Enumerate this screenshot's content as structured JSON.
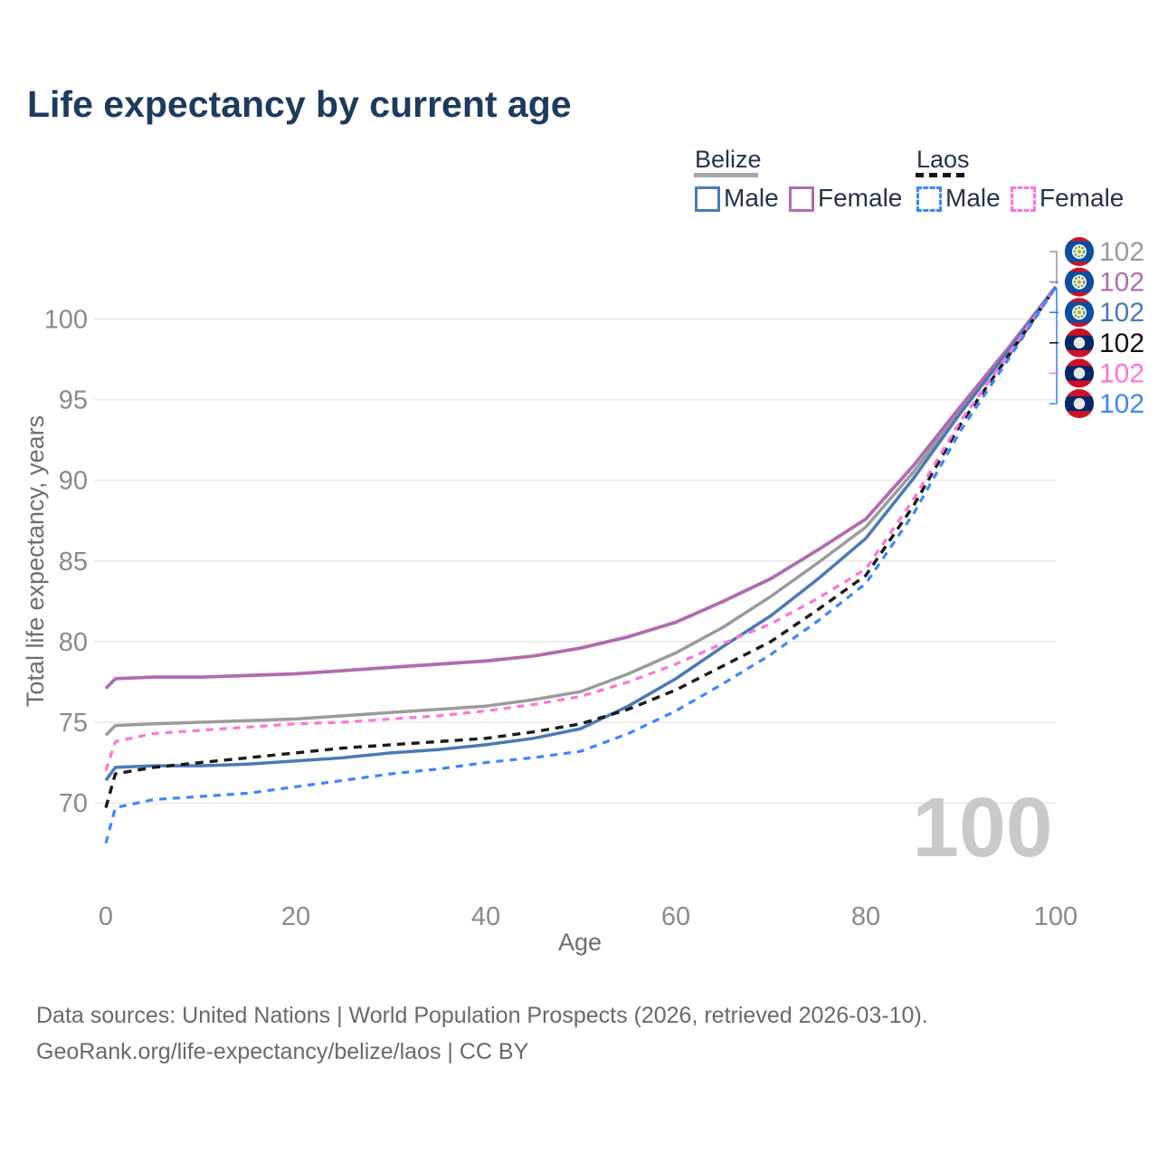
{
  "title": "Life expectancy by current age",
  "legend": {
    "groups": [
      {
        "country": "Belize",
        "line_style": "solid",
        "bar_color": "#a7a7a7",
        "items": [
          {
            "label": "Male",
            "color": "#4b79b7",
            "dashed": false
          },
          {
            "label": "Female",
            "color": "#b16cb1",
            "dashed": false
          }
        ]
      },
      {
        "country": "Laos",
        "line_style": "dashed",
        "bar_color": "#151515",
        "items": [
          {
            "label": "Male",
            "color": "#3c86ff",
            "dashed": true
          },
          {
            "label": "Female",
            "color": "#ff74d7",
            "dashed": true
          }
        ]
      }
    ]
  },
  "footer": {
    "line1": "Data sources: United Nations | World Population Prospects (2026, retrieved 2026-03-10).",
    "line2": "GeoRank.org/life-expectancy/belize/laos | CC BY"
  },
  "chart_data": {
    "type": "line",
    "title": "Life expectancy by current age",
    "xlabel": "Age",
    "ylabel": "Total life expectancy, years",
    "xlim": [
      0,
      100
    ],
    "ylim": [
      67,
      103
    ],
    "x_ticks": [
      0,
      20,
      40,
      60,
      80,
      100
    ],
    "y_ticks": [
      70,
      75,
      80,
      85,
      90,
      95,
      100
    ],
    "grid": "horizontal",
    "watermark": "100",
    "tick_color": "#8a8a8a",
    "axis_title_color": "#6e6e6e",
    "grid_color": "#eaeaea",
    "watermark_color": "#c9c9c9",
    "x": [
      0,
      1,
      5,
      10,
      15,
      20,
      25,
      30,
      35,
      40,
      45,
      50,
      55,
      60,
      65,
      70,
      75,
      80,
      85,
      90,
      95,
      100
    ],
    "series": [
      {
        "id": "belize-all",
        "name": "Belize (both sexes)",
        "country": "Belize",
        "sex": "All",
        "color": "#9b9b9b",
        "dash": null,
        "width": 3.5,
        "flag": "belize",
        "end_value": "102",
        "values": [
          74.2,
          74.8,
          74.9,
          75.0,
          75.1,
          75.2,
          75.4,
          75.6,
          75.8,
          76.0,
          76.4,
          76.9,
          78.0,
          79.3,
          80.9,
          82.8,
          84.9,
          87.1,
          90.5,
          94.4,
          98.1,
          102
        ]
      },
      {
        "id": "belize-female",
        "name": "Belize Female",
        "country": "Belize",
        "sex": "Female",
        "color": "#b16cb1",
        "dash": null,
        "width": 3.8,
        "flag": "belize",
        "end_value": "102",
        "values": [
          77.1,
          77.7,
          77.8,
          77.8,
          77.9,
          78.0,
          78.2,
          78.4,
          78.6,
          78.8,
          79.1,
          79.6,
          80.3,
          81.2,
          82.5,
          83.9,
          85.7,
          87.6,
          90.9,
          94.6,
          98.2,
          102
        ]
      },
      {
        "id": "belize-male",
        "name": "Belize Male",
        "country": "Belize",
        "sex": "Male",
        "color": "#4b79b7",
        "dash": null,
        "width": 3.5,
        "flag": "belize",
        "end_value": "102",
        "values": [
          71.4,
          72.2,
          72.3,
          72.3,
          72.4,
          72.6,
          72.8,
          73.1,
          73.3,
          73.6,
          74.0,
          74.6,
          76.0,
          77.7,
          79.7,
          81.6,
          83.9,
          86.4,
          90.1,
          94.2,
          98.0,
          102
        ]
      },
      {
        "id": "laos-all",
        "name": "Laos (both sexes)",
        "country": "Laos",
        "sex": "All",
        "color": "#1a1a1a",
        "dash": "9 7",
        "width": 3.4,
        "flag": "laos",
        "end_value": "102",
        "values": [
          69.7,
          71.8,
          72.2,
          72.5,
          72.8,
          73.1,
          73.4,
          73.6,
          73.8,
          74.0,
          74.4,
          74.9,
          75.8,
          77.0,
          78.5,
          80.0,
          82.0,
          84.1,
          88.4,
          93.5,
          97.7,
          102
        ]
      },
      {
        "id": "laos-female",
        "name": "Laos Female",
        "country": "Laos",
        "sex": "Female",
        "color": "#ff74d7",
        "dash": "8 7",
        "width": 3.2,
        "flag": "laos",
        "end_value": "102",
        "values": [
          72.0,
          73.8,
          74.3,
          74.5,
          74.7,
          74.9,
          75.0,
          75.2,
          75.4,
          75.7,
          76.1,
          76.6,
          77.5,
          78.6,
          79.9,
          81.1,
          82.7,
          84.5,
          88.8,
          93.7,
          97.8,
          102
        ]
      },
      {
        "id": "laos-male",
        "name": "Laos Male",
        "country": "Laos",
        "sex": "Male",
        "color": "#3c86ff",
        "dash": "8 7",
        "width": 3.2,
        "flag": "laos",
        "end_value": "102",
        "values": [
          67.5,
          69.7,
          70.2,
          70.4,
          70.6,
          71.0,
          71.4,
          71.8,
          72.1,
          72.5,
          72.8,
          73.2,
          74.3,
          75.7,
          77.4,
          79.2,
          81.3,
          83.6,
          87.9,
          93.1,
          97.5,
          102
        ]
      }
    ],
    "legend_position": "top-right"
  }
}
